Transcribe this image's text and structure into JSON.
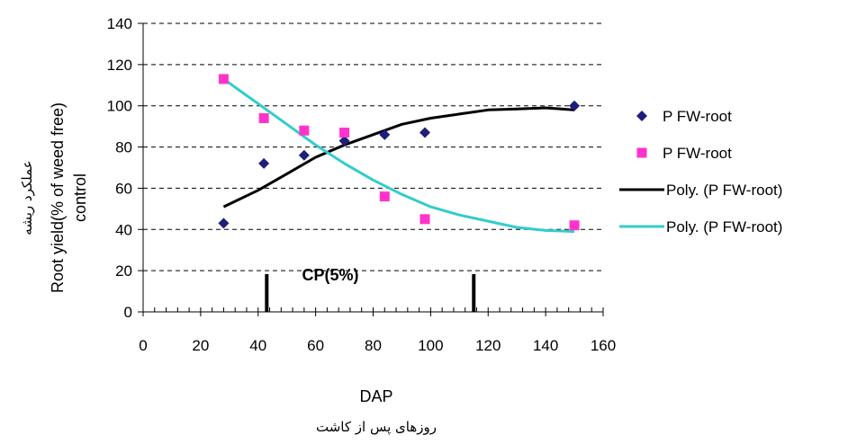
{
  "chart_data": {
    "type": "scatter",
    "xlabel": "DAP",
    "xlabel_fa": "روزهای پس از کاشت",
    "ylabel_line1": "Root yield(% of weed free)",
    "ylabel_line2": "control",
    "ylabel_fa": "عملکرد ریشه",
    "xlim": [
      0,
      160
    ],
    "ylim": [
      0,
      140
    ],
    "xticks": [
      0,
      20,
      40,
      60,
      80,
      100,
      120,
      140,
      160
    ],
    "yticks": [
      0,
      20,
      40,
      60,
      80,
      100,
      120,
      140
    ],
    "grid": "horizontal dashed",
    "legend_position": "right",
    "series": [
      {
        "name": "P FW-root",
        "kind": "points",
        "marker": "diamond",
        "color": "#1f1f7a",
        "points": [
          [
            28,
            43
          ],
          [
            42,
            72
          ],
          [
            56,
            76
          ],
          [
            70,
            83
          ],
          [
            84,
            86
          ],
          [
            98,
            87
          ],
          [
            150,
            100
          ]
        ]
      },
      {
        "name": "P FW-root",
        "kind": "points",
        "marker": "square",
        "color": "#ff33cc",
        "points": [
          [
            28,
            113
          ],
          [
            42,
            94
          ],
          [
            56,
            88
          ],
          [
            70,
            87
          ],
          [
            84,
            56
          ],
          [
            98,
            45
          ],
          [
            150,
            42
          ]
        ]
      },
      {
        "name": "Poly. (P FW-root)",
        "kind": "trendline",
        "color": "#000000",
        "points": [
          [
            28,
            51
          ],
          [
            40,
            59
          ],
          [
            50,
            67
          ],
          [
            60,
            75
          ],
          [
            70,
            81
          ],
          [
            80,
            86
          ],
          [
            90,
            91
          ],
          [
            100,
            94
          ],
          [
            110,
            96
          ],
          [
            120,
            98
          ],
          [
            130,
            98.5
          ],
          [
            140,
            99
          ],
          [
            150,
            98
          ]
        ]
      },
      {
        "name": "Poly. (P FW-root)",
        "kind": "trendline",
        "color": "#33cccc",
        "points": [
          [
            28,
            113
          ],
          [
            35,
            106
          ],
          [
            40,
            101
          ],
          [
            50,
            91
          ],
          [
            60,
            81
          ],
          [
            70,
            72
          ],
          [
            80,
            64
          ],
          [
            90,
            57
          ],
          [
            100,
            51
          ],
          [
            110,
            47
          ],
          [
            120,
            44
          ],
          [
            130,
            41
          ],
          [
            140,
            39.5
          ],
          [
            150,
            39
          ]
        ]
      }
    ],
    "annotation": {
      "text": "CP(5%)",
      "range": [
        43,
        115
      ]
    }
  }
}
